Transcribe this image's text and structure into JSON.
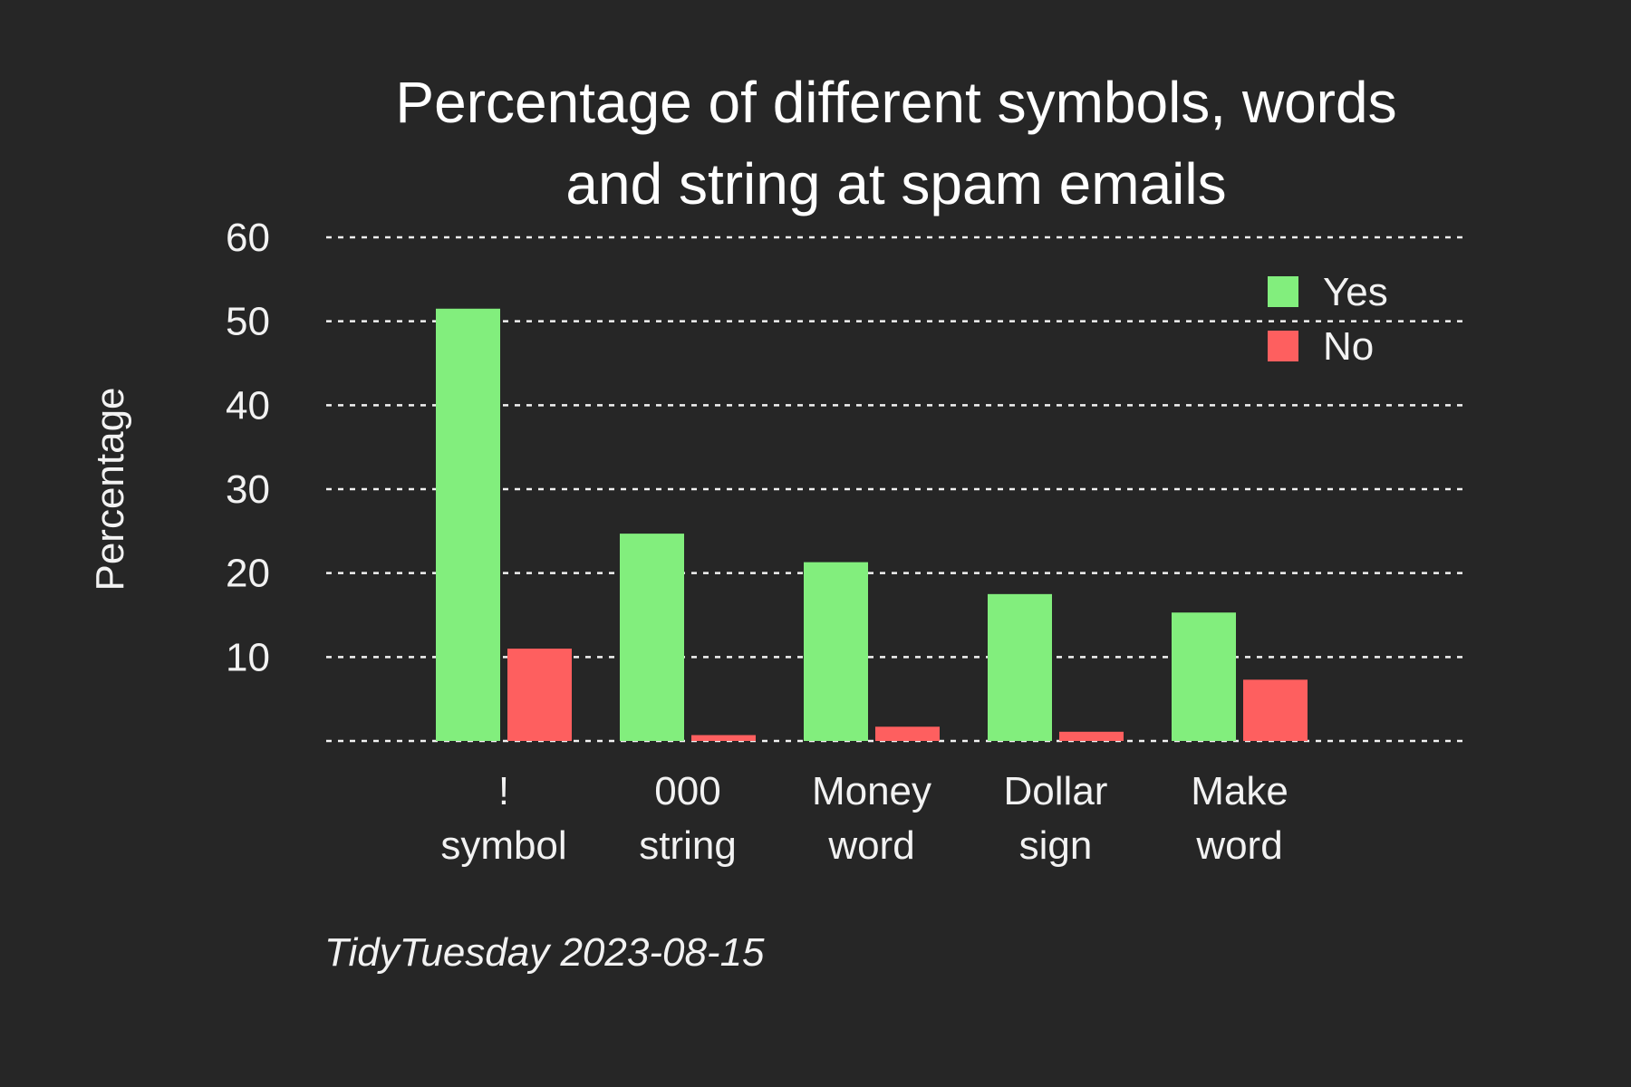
{
  "chart_data": {
    "type": "bar",
    "title": [
      "Percentage of different symbols, words",
      "and string at spam emails"
    ],
    "ylabel": "Percentage",
    "xlabel": "",
    "caption": "TidyTuesday 2023-08-15",
    "categories": [
      [
        "!",
        "symbol"
      ],
      [
        "000",
        "string"
      ],
      [
        "Money",
        "word"
      ],
      [
        "Dollar",
        "sign"
      ],
      [
        "Make",
        "word"
      ]
    ],
    "series": [
      {
        "name": "Yes",
        "color": "#82EE7D",
        "values": [
          51.5,
          24.7,
          21.3,
          17.5,
          15.3
        ]
      },
      {
        "name": "No",
        "color": "#FE5F5F",
        "values": [
          11.0,
          0.7,
          1.7,
          1.1,
          7.3
        ]
      }
    ],
    "yticks": [
      10,
      20,
      30,
      40,
      50,
      60
    ],
    "ylim": [
      0,
      60
    ],
    "grid": "horizontal dotted",
    "legend_position": "top-right"
  }
}
